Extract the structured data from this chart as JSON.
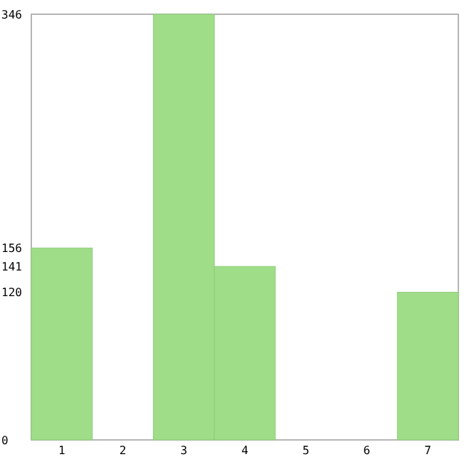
{
  "chart_data": {
    "type": "bar",
    "categories": [
      "1",
      "2",
      "3",
      "4",
      "5",
      "6",
      "7"
    ],
    "values": [
      156,
      0,
      346,
      141,
      0,
      0,
      120
    ],
    "color": "#9fdd88",
    "ylim": [
      0,
      346
    ],
    "yticks": [
      0,
      120,
      141,
      156,
      346
    ],
    "grid": false
  }
}
